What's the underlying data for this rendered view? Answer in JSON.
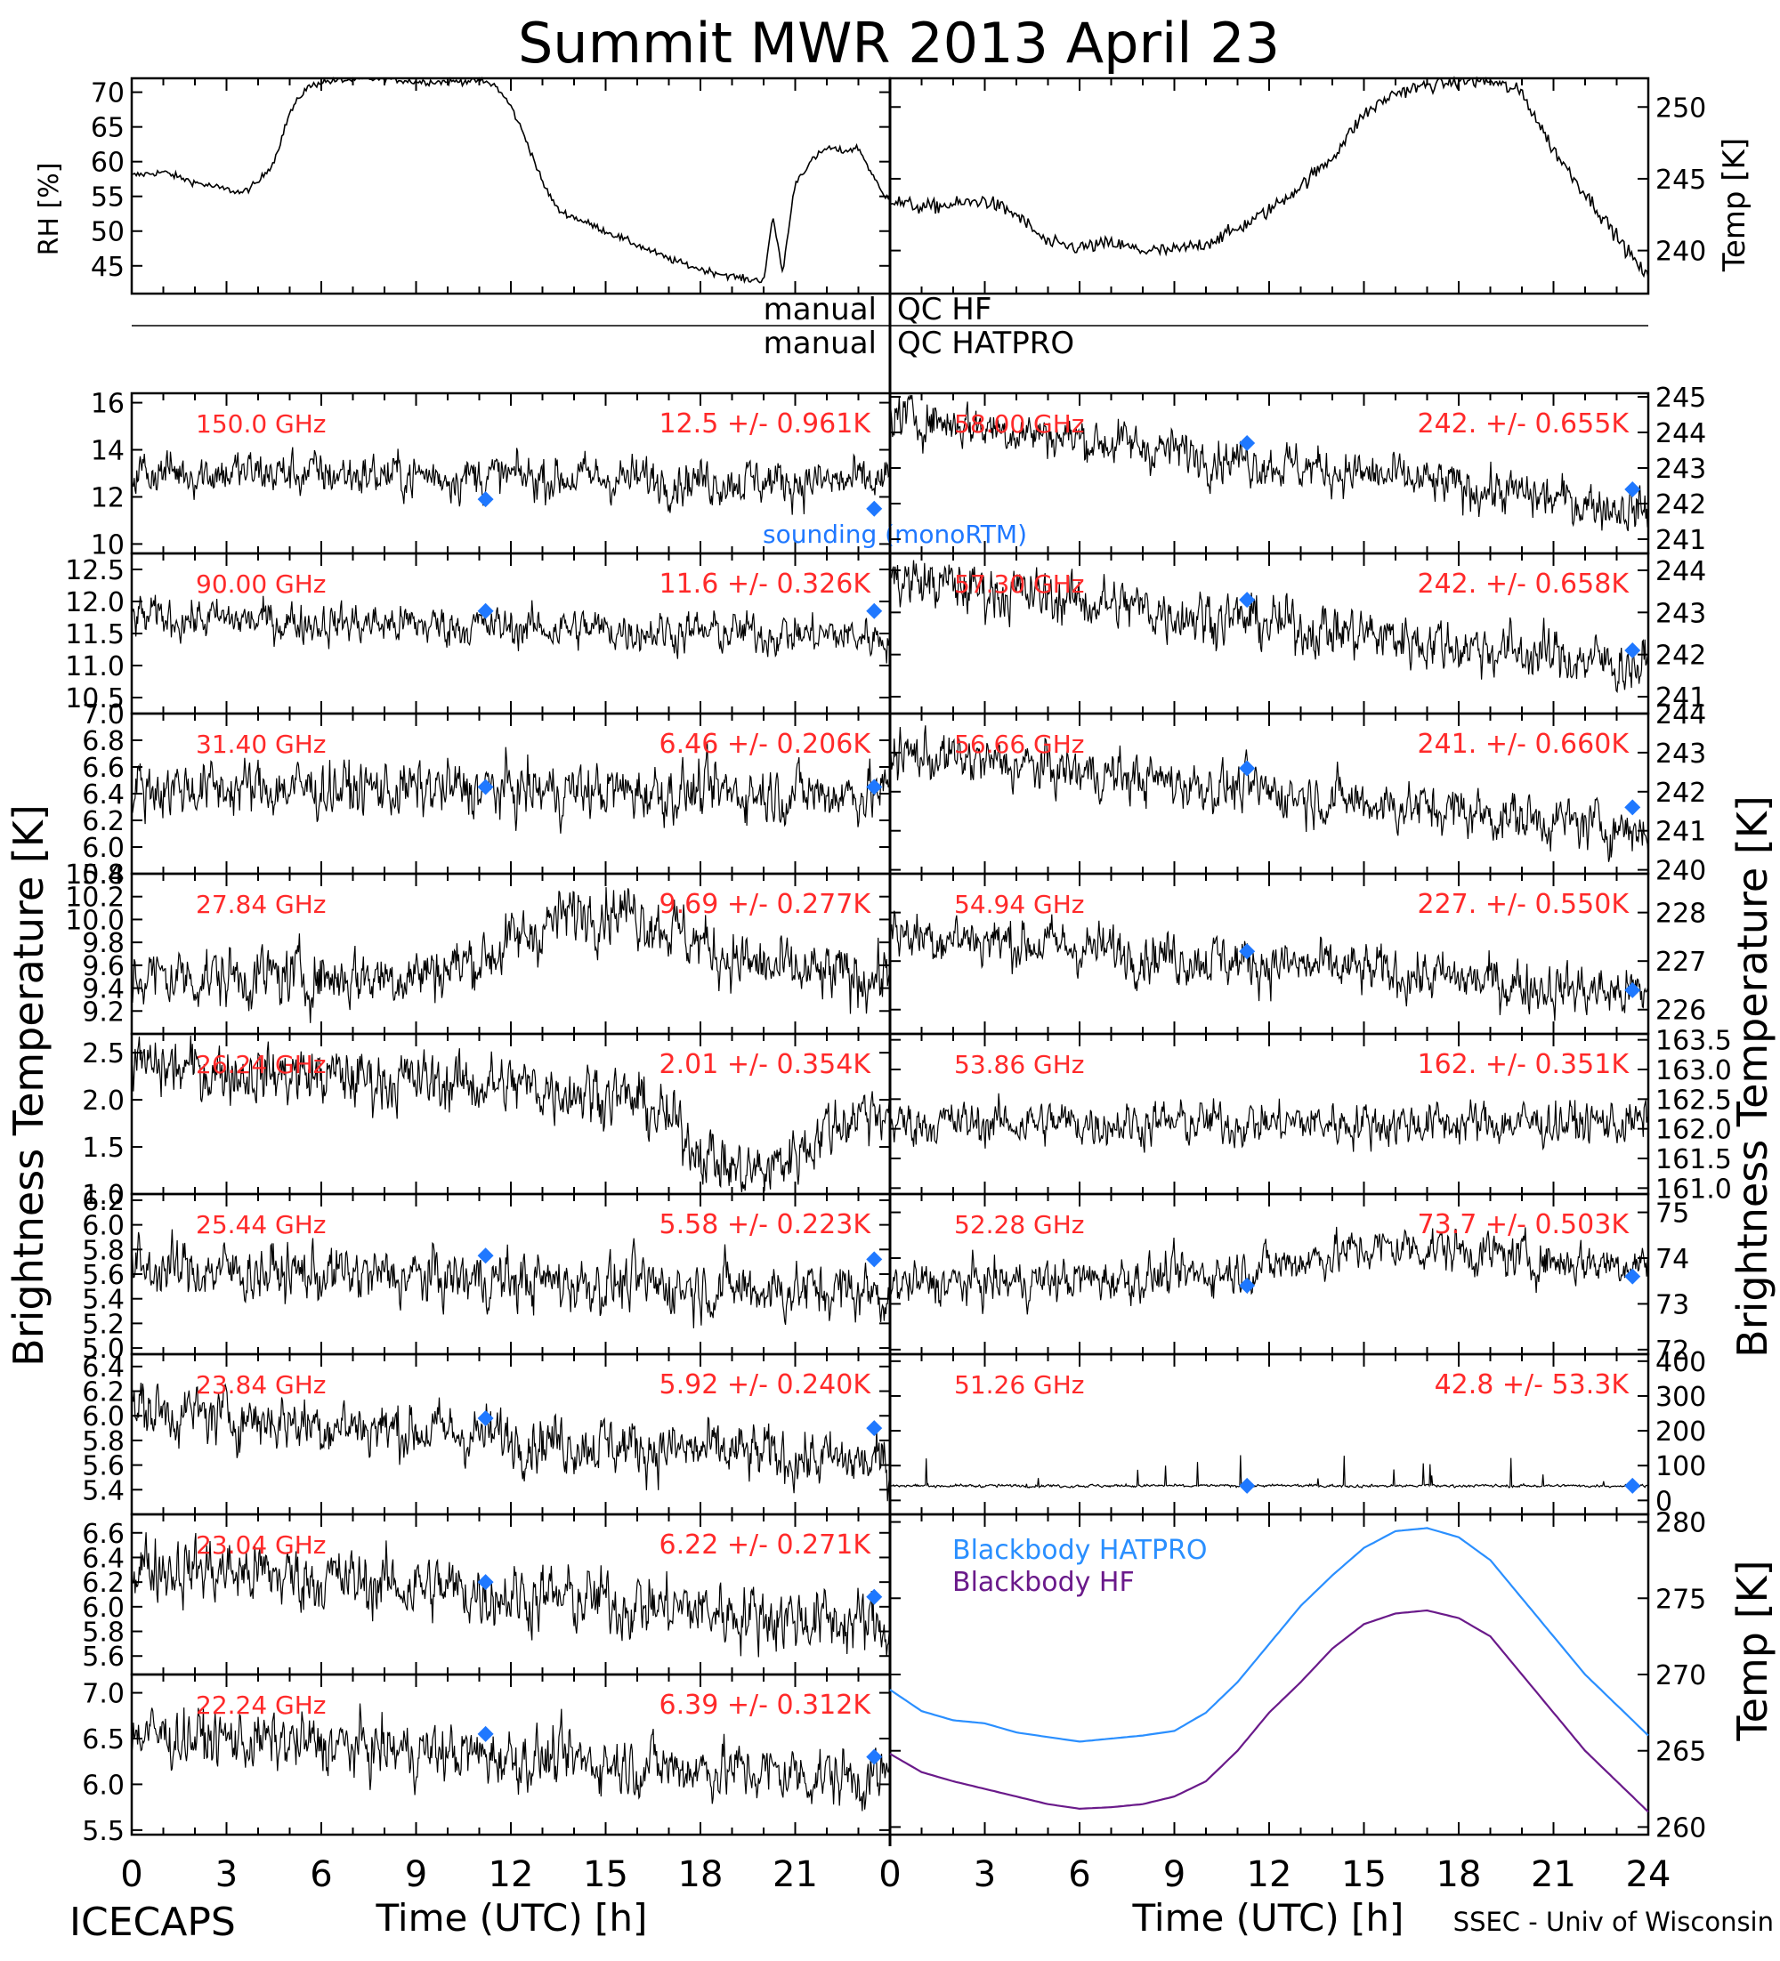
{
  "title": "Summit MWR 2013 April 23",
  "footer": {
    "left": "ICECAPS",
    "right": "SSEC - Univ of Wisconsin"
  },
  "qc": {
    "hf": "manual",
    "hf_label": "QC HF",
    "hatpro": "manual",
    "hatpro_label": "QC HATPRO"
  },
  "axis_labels": {
    "left_main": "Brightness Temperature [K]",
    "right_main": "Brightness Temperature [K]",
    "rh": "RH [%]",
    "temp_top": "Temp [K]",
    "temp_bottom": "Temp [K]",
    "time": "Time (UTC) [h]"
  },
  "time_ticks": [
    "0",
    "3",
    "6",
    "9",
    "12",
    "15",
    "18",
    "21",
    "24"
  ],
  "colors": {
    "data": "#000000",
    "freq_label": "#ff2a2a",
    "sounding": "#1f78ff",
    "hatpro": "#2a8fff",
    "hf": "#6a1a8a"
  },
  "chart_data": [
    {
      "type": "line",
      "name": "rh",
      "xlabel": "",
      "ylabel": "RH [%]",
      "xlim": [
        0,
        24
      ],
      "ylim": [
        41,
        72
      ],
      "yticks": [
        "45",
        "50",
        "55",
        "60",
        "65",
        "70"
      ],
      "x": [
        0,
        1,
        2,
        3,
        3.5,
        4,
        4.5,
        5,
        5.5,
        6,
        7,
        8,
        9,
        10,
        11,
        11.5,
        12,
        12.5,
        13,
        13.5,
        14,
        15,
        16,
        17,
        18,
        19,
        19.5,
        20,
        20.3,
        20.6,
        21,
        21.5,
        22,
        22.5,
        23,
        23.8
      ],
      "y": [
        58,
        58.5,
        57,
        56,
        55.5,
        57,
        60,
        67,
        70.5,
        71.5,
        71.8,
        72,
        71.5,
        71.5,
        71.7,
        71,
        68,
        63,
        57,
        53,
        52,
        50,
        48,
        46,
        44.5,
        43.5,
        43,
        43,
        52,
        44,
        57,
        60,
        62,
        61.5,
        62,
        55
      ]
    },
    {
      "type": "line",
      "name": "temp",
      "xlabel": "",
      "ylabel": "Temp [K]",
      "xlim": [
        0,
        24
      ],
      "ylim": [
        237,
        252
      ],
      "yticks": [
        "240",
        "245",
        "250"
      ],
      "x": [
        0,
        1,
        2,
        3,
        4,
        5,
        6,
        7,
        8,
        9,
        10,
        11,
        12,
        13,
        14,
        15,
        16,
        17,
        18,
        19,
        20,
        20.5,
        21,
        22,
        23,
        24
      ],
      "y": [
        243.5,
        243,
        243.2,
        243.5,
        242.5,
        240.5,
        240.2,
        240.5,
        240,
        240,
        240.5,
        241.5,
        242.8,
        244.5,
        246.5,
        249.5,
        251,
        251.5,
        251.8,
        251.8,
        251,
        249,
        247,
        244,
        241,
        238
      ]
    },
    {
      "type": "line",
      "side": "left",
      "label": "150.0 GHz",
      "stats": "12.5 +/- 0.961K",
      "ylim": [
        9.6,
        16.4
      ],
      "yticks": [
        "10",
        "12",
        "14",
        "16"
      ],
      "base": [
        13.1,
        12.6
      ],
      "noise": 0.9,
      "sounding": [
        [
          11.2,
          11.9
        ],
        [
          23.5,
          11.5
        ]
      ],
      "note": "sounding (monoRTM)"
    },
    {
      "type": "line",
      "side": "left",
      "label": "90.00 GHz",
      "stats": "11.6 +/- 0.326K",
      "ylim": [
        10.25,
        12.75
      ],
      "yticks": [
        "10.5",
        "11.0",
        "11.5",
        "12.0",
        "12.5"
      ],
      "base": [
        11.75,
        11.45
      ],
      "noise": 0.3,
      "sounding": [
        [
          11.2,
          11.85
        ],
        [
          23.5,
          11.85
        ]
      ]
    },
    {
      "type": "line",
      "side": "left",
      "label": "31.40 GHz",
      "stats": "6.46 +/- 0.206K",
      "ylim": [
        5.8,
        7.0
      ],
      "yticks": [
        "5.8",
        "6.0",
        "6.2",
        "6.4",
        "6.6",
        "6.8",
        "7.0"
      ],
      "base": [
        6.45,
        6.4
      ],
      "noise": 0.2,
      "sounding": [
        [
          11.2,
          6.45
        ],
        [
          23.5,
          6.45
        ]
      ]
    },
    {
      "type": "line",
      "side": "left",
      "label": "27.84 GHz",
      "stats": "9.69 +/- 0.277K",
      "ylim": [
        9.0,
        10.4
      ],
      "yticks": [
        "9.2",
        "9.4",
        "9.6",
        "9.8",
        "10.0",
        "10.2",
        "10.4"
      ],
      "base": [
        9.5,
        9.5
      ],
      "hump": [
        15,
        0.6,
        3.5
      ],
      "noise": 0.25,
      "sounding": []
    },
    {
      "type": "line",
      "side": "left",
      "label": "26.24 GHz",
      "stats": "2.01 +/- 0.354K",
      "ylim": [
        1.0,
        2.7
      ],
      "yticks": [
        "1.0",
        "1.5",
        "2.0",
        "2.5"
      ],
      "base": [
        2.35,
        1.95
      ],
      "hump": [
        19.5,
        -0.8,
        2.5
      ],
      "noise": 0.3,
      "sounding": []
    },
    {
      "type": "line",
      "side": "left",
      "label": "25.44 GHz",
      "stats": "5.58 +/- 0.223K",
      "ylim": [
        4.95,
        6.25
      ],
      "yticks": [
        "5.0",
        "5.2",
        "5.4",
        "5.6",
        "5.8",
        "6.0",
        "6.2"
      ],
      "base": [
        5.65,
        5.45
      ],
      "noise": 0.22,
      "sounding": [
        [
          11.2,
          5.75
        ],
        [
          23.5,
          5.72
        ]
      ]
    },
    {
      "type": "line",
      "side": "left",
      "label": "23.84 GHz",
      "stats": "5.92 +/- 0.240K",
      "ylim": [
        5.2,
        6.5
      ],
      "yticks": [
        "5.4",
        "5.6",
        "5.8",
        "6.0",
        "6.2",
        "6.4"
      ],
      "base": [
        6.05,
        5.6
      ],
      "noise": 0.22,
      "sounding": [
        [
          11.2,
          5.98
        ],
        [
          23.5,
          5.9
        ]
      ]
    },
    {
      "type": "line",
      "side": "left",
      "label": "23.04 GHz",
      "stats": "6.22 +/- 0.271K",
      "ylim": [
        5.45,
        6.75
      ],
      "yticks": [
        "5.6",
        "5.8",
        "6.0",
        "6.2",
        "6.4",
        "6.6"
      ],
      "base": [
        6.35,
        5.85
      ],
      "noise": 0.25,
      "sounding": [
        [
          11.2,
          6.2
        ],
        [
          23.5,
          6.08
        ]
      ]
    },
    {
      "type": "line",
      "side": "left",
      "label": "22.24 GHz",
      "stats": "6.39 +/- 0.312K",
      "ylim": [
        5.45,
        7.2
      ],
      "yticks": [
        "5.5",
        "6.0",
        "6.5",
        "7.0"
      ],
      "base": [
        6.55,
        6.05
      ],
      "noise": 0.3,
      "sounding": [
        [
          11.2,
          6.55
        ],
        [
          23.5,
          6.3
        ]
      ]
    },
    {
      "type": "line",
      "side": "right",
      "label": "58.00 GHz",
      "stats": "242. +/- 0.655K",
      "ylim": [
        240.6,
        245.1
      ],
      "yticks": [
        "241",
        "242",
        "243",
        "244",
        "245"
      ],
      "base": [
        244.5,
        241.8
      ],
      "noise": 0.6,
      "sounding": [
        [
          11.3,
          243.7
        ],
        [
          23.5,
          242.4
        ]
      ]
    },
    {
      "type": "line",
      "side": "right",
      "label": "57.30 GHz",
      "stats": "242. +/- 0.658K",
      "ylim": [
        240.6,
        244.4
      ],
      "yticks": [
        "241",
        "242",
        "243",
        "244"
      ],
      "base": [
        243.8,
        241.7
      ],
      "noise": 0.6,
      "sounding": [
        [
          11.3,
          243.3
        ],
        [
          23.5,
          242.1
        ]
      ]
    },
    {
      "type": "line",
      "side": "right",
      "label": "56.66 GHz",
      "stats": "241. +/- 0.660K",
      "ylim": [
        239.9,
        244.0
      ],
      "yticks": [
        "240",
        "241",
        "242",
        "243",
        "244"
      ],
      "base": [
        243.0,
        241.0
      ],
      "noise": 0.6,
      "sounding": [
        [
          11.3,
          242.6
        ],
        [
          23.5,
          241.6
        ]
      ]
    },
    {
      "type": "line",
      "side": "right",
      "label": "54.94 GHz",
      "stats": "227. +/- 0.550K",
      "ylim": [
        225.5,
        228.8
      ],
      "yticks": [
        "226",
        "227",
        "228"
      ],
      "base": [
        227.6,
        226.3
      ],
      "noise": 0.5,
      "sounding": [
        [
          11.3,
          227.2
        ],
        [
          23.5,
          226.4
        ]
      ]
    },
    {
      "type": "line",
      "side": "right",
      "label": "53.86 GHz",
      "stats": "162. +/- 0.351K",
      "ylim": [
        160.9,
        163.6
      ],
      "yticks": [
        "161.0",
        "161.5",
        "162.0",
        "162.5",
        "163.0",
        "163.5"
      ],
      "base": [
        162.1,
        162.1
      ],
      "noise": 0.35,
      "sounding": []
    },
    {
      "type": "line",
      "side": "right",
      "label": "52.28 GHz",
      "stats": "73.7 +/- 0.503K",
      "ylim": [
        71.9,
        75.4
      ],
      "yticks": [
        "72",
        "73",
        "74",
        "75"
      ],
      "base": [
        73.4,
        73.9
      ],
      "hump": [
        16,
        0.5,
        4
      ],
      "noise": 0.45,
      "sounding": [
        [
          11.3,
          73.4
        ],
        [
          23.5,
          73.6
        ]
      ]
    },
    {
      "type": "line",
      "side": "right",
      "label": "51.26 GHz",
      "stats": "42.8 +/- 53.3K",
      "ylim": [
        -40,
        420
      ],
      "yticks": [
        "0",
        "100",
        "200",
        "300",
        "400"
      ],
      "base": [
        42,
        42
      ],
      "noise": 4,
      "spiky": true,
      "sounding": [
        [
          11.3,
          42
        ],
        [
          23.5,
          42
        ]
      ]
    },
    {
      "type": "line",
      "name": "blackbody",
      "xlabel": "Time (UTC) [h]",
      "ylabel": "Temp [K]",
      "xlim": [
        0,
        24
      ],
      "ylim": [
        259.5,
        280.5
      ],
      "yticks": [
        "260",
        "265",
        "270",
        "275",
        "280"
      ],
      "series": [
        {
          "name": "Blackbody HATPRO",
          "x": [
            0,
            1,
            2,
            3,
            4,
            5,
            6,
            7,
            8,
            9,
            10,
            11,
            12,
            13,
            14,
            15,
            16,
            17,
            18,
            19,
            20,
            21,
            22,
            23,
            24
          ],
          "y": [
            269,
            267.6,
            267,
            266.8,
            266.2,
            265.9,
            265.6,
            265.8,
            266,
            266.3,
            267.5,
            269.5,
            272,
            274.5,
            276.5,
            278.3,
            279.4,
            279.6,
            279,
            277.5,
            275,
            272.5,
            270,
            268,
            266
          ]
        },
        {
          "name": "Blackbody HF",
          "x": [
            0,
            1,
            2,
            3,
            4,
            5,
            6,
            7,
            8,
            9,
            10,
            11,
            12,
            13,
            14,
            15,
            16,
            17,
            18,
            19,
            20,
            21,
            22,
            23,
            24
          ],
          "y": [
            264.8,
            263.6,
            263,
            262.5,
            262,
            261.5,
            261.2,
            261.3,
            261.5,
            262,
            263,
            265,
            267.5,
            269.5,
            271.7,
            273.3,
            274,
            274.2,
            273.7,
            272.5,
            270,
            267.5,
            265,
            263,
            261
          ]
        }
      ]
    }
  ]
}
